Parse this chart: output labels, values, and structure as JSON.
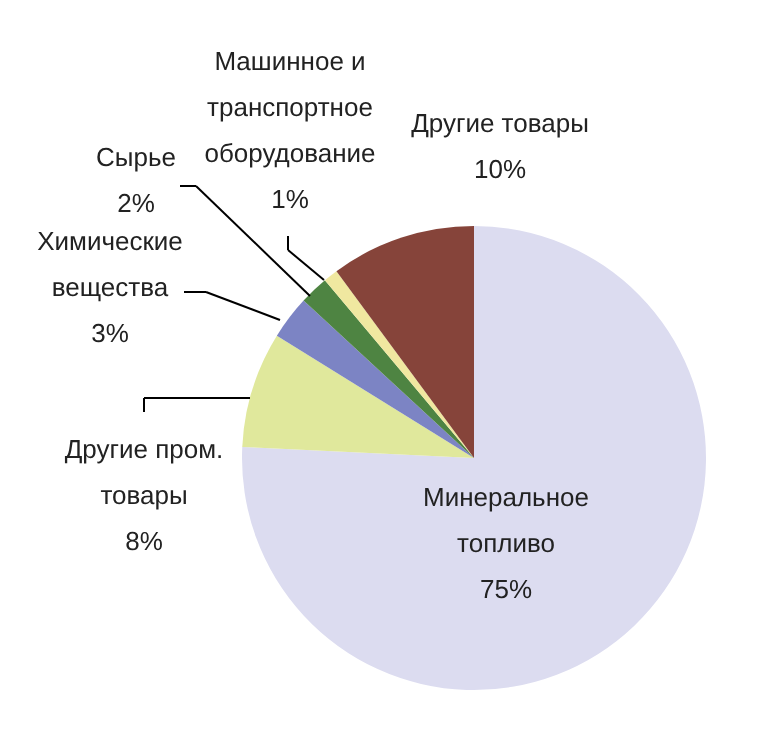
{
  "chart_data": {
    "type": "pie",
    "categories": [
      "Минеральное топливо",
      "Другие пром. товары",
      "Химические вещества",
      "Сырье",
      "Машинное и транспортное оборудование",
      "Другие товары"
    ],
    "values": [
      75,
      8,
      3,
      2,
      1,
      10
    ],
    "value_labels": [
      "75%",
      "8%",
      "3%",
      "2%",
      "1%",
      "10%"
    ],
    "colors": [
      "#dcdcf0",
      "#e0e89c",
      "#7c84c4",
      "#4e8442",
      "#f0e8a0",
      "#86443a"
    ]
  }
}
